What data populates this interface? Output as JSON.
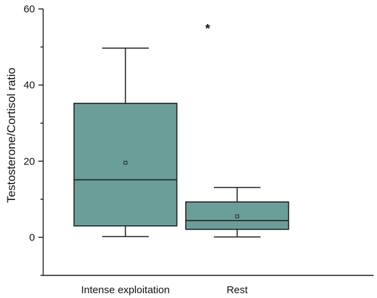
{
  "chart_data": {
    "type": "box",
    "title": "",
    "xlabel": "",
    "ylabel": "Testosterone/Cortisol ratio",
    "ylim": [
      -10,
      60
    ],
    "y_ticks": [
      0,
      20,
      40,
      60
    ],
    "y_minor_ticks": [
      -10,
      10,
      30,
      50
    ],
    "y_tick_labels": [
      "0",
      "20",
      "40",
      "60"
    ],
    "grid": false,
    "legend": "none",
    "box_color": "#6b9e98",
    "categories": [
      "Intense exploitation",
      "Rest"
    ],
    "boxes": [
      {
        "category": "Intense exploitation",
        "whisker_low": 0.2,
        "q1": 3.0,
        "median": 15.1,
        "q3": 35.2,
        "whisker_high": 49.7,
        "mean": 19.6
      },
      {
        "category": "Rest",
        "whisker_low": 0.1,
        "q1": 2.1,
        "median": 4.4,
        "q3": 9.3,
        "whisker_high": 13.1,
        "mean": 5.5
      }
    ],
    "annotation": "*"
  }
}
